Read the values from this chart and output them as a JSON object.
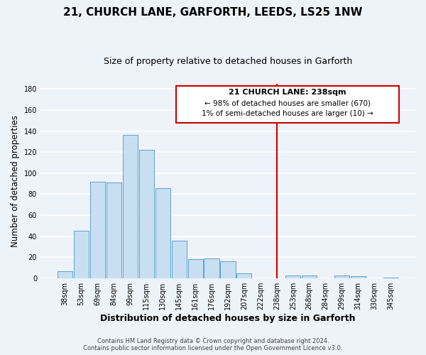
{
  "title": "21, CHURCH LANE, GARFORTH, LEEDS, LS25 1NW",
  "subtitle": "Size of property relative to detached houses in Garforth",
  "xlabel": "Distribution of detached houses by size in Garforth",
  "ylabel": "Number of detached properties",
  "bar_labels": [
    "38sqm",
    "53sqm",
    "69sqm",
    "84sqm",
    "99sqm",
    "115sqm",
    "130sqm",
    "145sqm",
    "161sqm",
    "176sqm",
    "192sqm",
    "207sqm",
    "222sqm",
    "238sqm",
    "253sqm",
    "268sqm",
    "284sqm",
    "299sqm",
    "314sqm",
    "330sqm",
    "345sqm"
  ],
  "bar_values": [
    7,
    45,
    92,
    91,
    136,
    122,
    86,
    36,
    18,
    19,
    16,
    5,
    0,
    0,
    3,
    3,
    0,
    3,
    2,
    0,
    1
  ],
  "bar_color": "#c7dff0",
  "bar_edge_color": "#5ba3d0",
  "bar_highlight_index": 13,
  "highlight_line_color": "#cc0000",
  "ylim": [
    0,
    185
  ],
  "yticks": [
    0,
    20,
    40,
    60,
    80,
    100,
    120,
    140,
    160,
    180
  ],
  "annotation_title": "21 CHURCH LANE: 238sqm",
  "annotation_line1": "← 98% of detached houses are smaller (670)",
  "annotation_line2": "1% of semi-detached houses are larger (10) →",
  "footer_line1": "Contains HM Land Registry data © Crown copyright and database right 2024.",
  "footer_line2": "Contains public sector information licensed under the Open Government Licence v3.0.",
  "bg_color": "#eef2f9",
  "grid_color": "#ffffff",
  "title_fontsize": 11,
  "subtitle_fontsize": 9,
  "tick_fontsize": 7,
  "ylabel_fontsize": 8.5,
  "xlabel_fontsize": 9
}
